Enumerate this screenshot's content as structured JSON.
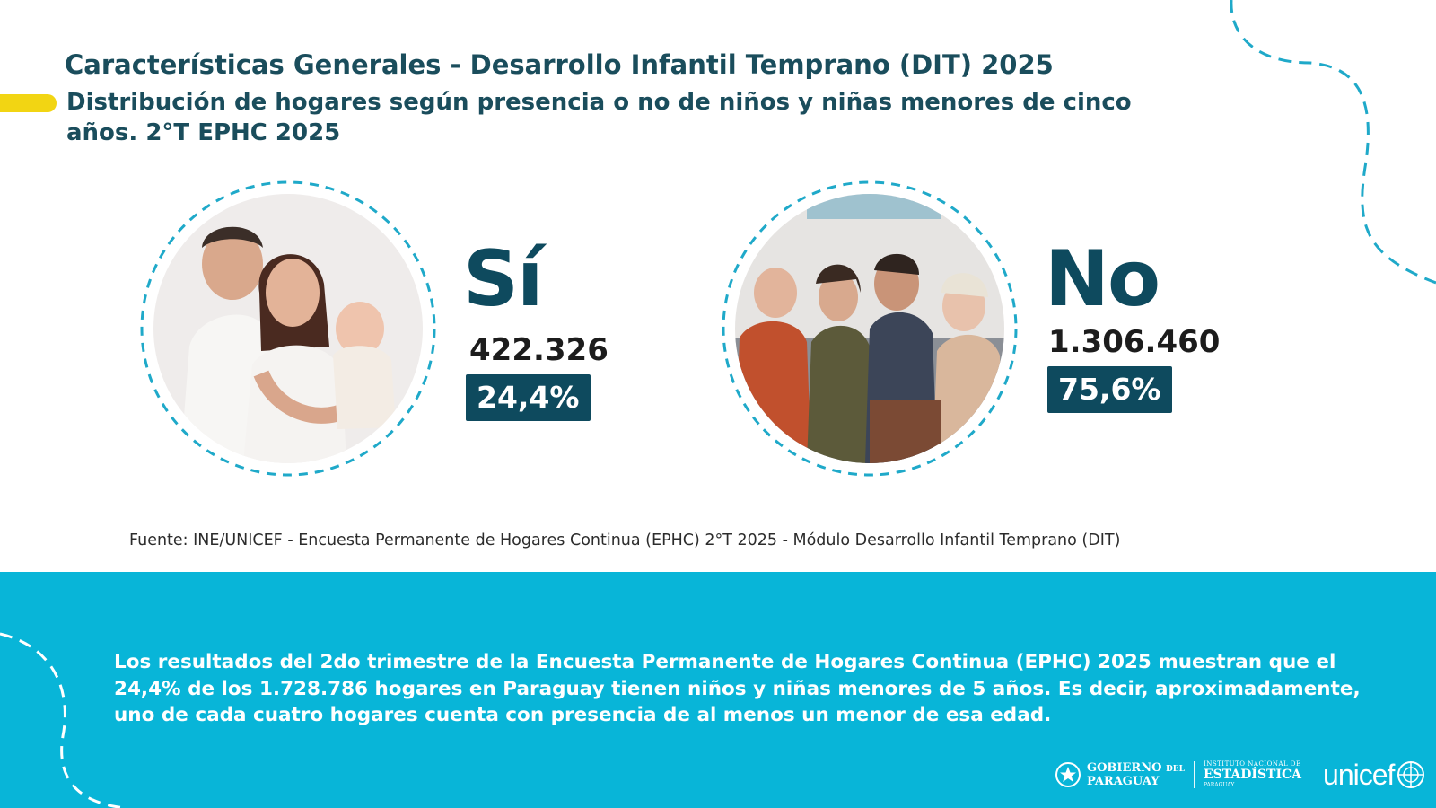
{
  "header": {
    "title": "Características Generales - Desarrollo Infantil Temprano (DIT) 2025",
    "subtitle": "Distribución de hogares según presencia o no de niños y niñas menores de cinco años. 2°T EPHC 2025"
  },
  "groups": [
    {
      "label": "Sí",
      "count": "422.326",
      "percent": "24,4%",
      "photo": "family-with-baby-photo"
    },
    {
      "label": "No",
      "count": "1.306.460",
      "percent": "75,6%",
      "photo": "adult-family-on-sofa-photo"
    }
  ],
  "source": "Fuente: INE/UNICEF - Encuesta Permanente de Hogares Continua (EPHC) 2°T 2025 - Módulo Desarrollo Infantil Temprano (DIT)",
  "summary": "Los resultados del 2do trimestre de la Encuesta Permanente de Hogares Continua (EPHC) 2025 muestran que el 24,4% de los 1.728.786 hogares en Paraguay tienen niños y niñas menores de 5 años. Es decir, aproximadamente, uno de cada cuatro hogares cuenta con presencia de al menos un menor de esa edad.",
  "logos": {
    "gov_line1": "GOBIERNO",
    "gov_del": "DEL",
    "gov_line2": "PARAGUAY",
    "ine_line1": "INSTITUTO NACIONAL DE",
    "ine_line2": "ESTADÍSTICA",
    "ine_line3": "PARAGUAY",
    "unicef": "unicef"
  },
  "colors": {
    "dark_teal": "#0e4a5e",
    "title_teal": "#1a4d5c",
    "cyan_band": "#08b5d8",
    "dash_cyan": "#1fa9c9",
    "yellow": "#f2d513"
  }
}
